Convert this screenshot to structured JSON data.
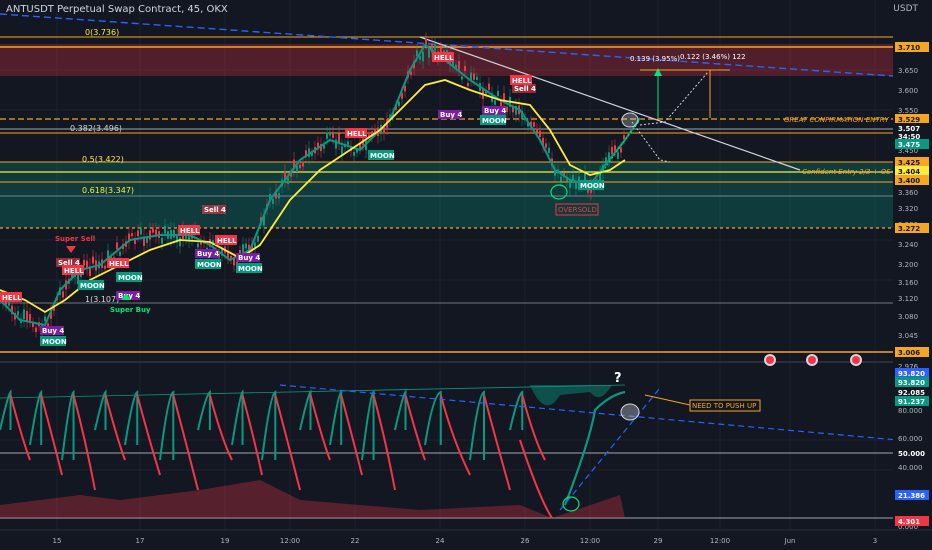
{
  "header": {
    "title": "ANTUSDT Perpetual Swap Contract, 45, OKX",
    "currency": "USDT"
  },
  "colors": {
    "bg": "#131722",
    "grid": "#1e222d",
    "orange": "#f5a623",
    "yellow": "#ffeb3b",
    "green": "#089981",
    "red": "#f23645",
    "blue": "#2962ff",
    "white": "#d1d4dc"
  },
  "price_axis": {
    "ticks": [
      "3.650",
      "3.600",
      "3.550",
      "3.450",
      "3.360",
      "3.320",
      "3.280",
      "3.240",
      "3.200",
      "3.160",
      "3.120",
      "3.080",
      "3.045",
      "3.015",
      "2.976"
    ],
    "badges": [
      {
        "text": "3.710",
        "bg": "#f5a623",
        "fg": "#131722"
      },
      {
        "text": "3.529",
        "bg": "#f5a623",
        "fg": "#131722"
      },
      {
        "text": "3.507",
        "bg": "#131722",
        "fg": "#ffffff"
      },
      {
        "text": "34:50",
        "bg": "#131722",
        "fg": "#ffffff"
      },
      {
        "text": "3.475",
        "bg": "#089981",
        "fg": "#ffffff"
      },
      {
        "text": "3.425",
        "bg": "#f5a623",
        "fg": "#131722"
      },
      {
        "text": "3.404",
        "bg": "#ffeb3b",
        "fg": "#131722"
      },
      {
        "text": "3.400",
        "bg": "#f5a623",
        "fg": "#131722"
      },
      {
        "text": "3.272",
        "bg": "#f5a623",
        "fg": "#131722"
      },
      {
        "text": "3.006",
        "bg": "#f5a623",
        "fg": "#131722"
      }
    ]
  },
  "fib_levels": [
    {
      "label": "0(3.736)"
    },
    {
      "label": "0.382(3.496)"
    },
    {
      "label": "0.5(3.422)"
    },
    {
      "label": "0.618(3.347)"
    },
    {
      "label": "1(3.107)"
    }
  ],
  "annotations": {
    "great_entry": "GREAT CONFIRMATION ENTRY",
    "confident_entry": "Confident Entry 2/3 + OS",
    "oversold": "OVERSOLD",
    "measure1": "0.139 (3.95%)",
    "measure2": "0.122 (3.46%) 122",
    "need_push": "NEED TO PUSH UP",
    "question": "?",
    "super_sell": "Super Sell",
    "super_buy": "Super Buy"
  },
  "tags": {
    "hell": "HELL",
    "moon": "MOON",
    "buy4": "Buy 4",
    "sell4": "Sell 4"
  },
  "osc_axis": {
    "ticks": [
      "80.000",
      "60.000",
      "40.000",
      "20.000",
      "0.000"
    ],
    "badges": [
      {
        "text": "93.820",
        "bg": "#2962ff",
        "fg": "#ffffff"
      },
      {
        "text": "93.820",
        "bg": "#089981",
        "fg": "#ffffff"
      },
      {
        "text": "92.085",
        "bg": "#131722",
        "fg": "#ffffff"
      },
      {
        "text": "91.237",
        "bg": "#089981",
        "fg": "#ffffff"
      },
      {
        "text": "50.000",
        "bg": "#131722",
        "fg": "#ffffff"
      },
      {
        "text": "21.386",
        "bg": "#2962ff",
        "fg": "#ffffff"
      },
      {
        "text": "4.301",
        "bg": "#f23645",
        "fg": "#ffffff"
      }
    ]
  },
  "time_axis": [
    "15",
    "17",
    "19",
    "12:00",
    "22",
    "24",
    "26",
    "12:00",
    "29",
    "12:00",
    "Jun",
    "3"
  ]
}
